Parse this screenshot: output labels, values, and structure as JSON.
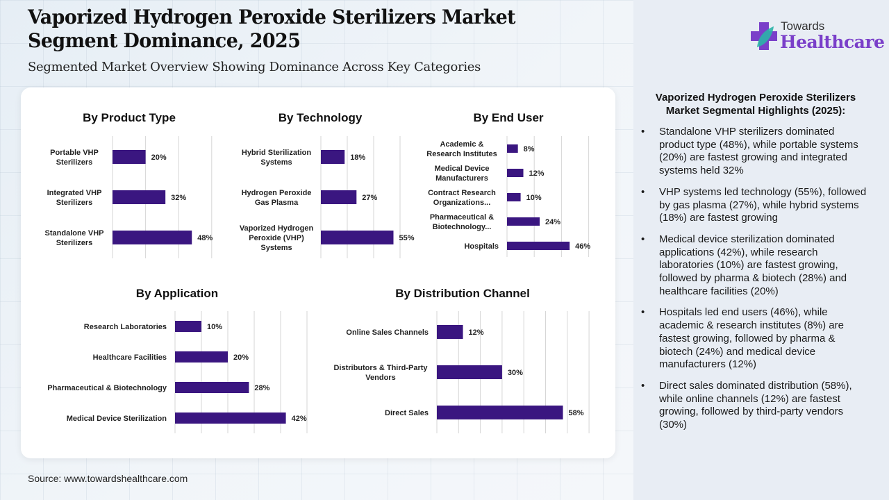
{
  "header": {
    "title_line1": "Vaporized Hydrogen Peroxide Sterilizers Market",
    "title_line2": "Segment Dominance, 2025",
    "subtitle": "Segmented Market Overview Showing Dominance Across Key Categories"
  },
  "logo": {
    "icon": "medical-cross-leaf-icon",
    "top": "Towards",
    "bottom": "Healthcare",
    "colors": {
      "cross": "#7a3fc9",
      "leaf": "#2bb3a8"
    }
  },
  "colors": {
    "bar": "#3a1680",
    "brand": "#7a3fc9",
    "gridline": "#d6d6d6"
  },
  "chart_data": [
    {
      "type": "bar",
      "orientation": "horizontal",
      "title": "By Product Type",
      "categories": [
        [
          "Portable VHP",
          "Sterilizers"
        ],
        [
          "Integrated VHP",
          "Sterilizers"
        ],
        [
          "Standalone VHP",
          "Sterilizers"
        ]
      ],
      "values": [
        20,
        32,
        48
      ],
      "value_labels": [
        "20%",
        "32%",
        "48%"
      ],
      "xlim": [
        0,
        60
      ],
      "grid_step": 20,
      "grid": true
    },
    {
      "type": "bar",
      "orientation": "horizontal",
      "title": "By Technology",
      "categories": [
        [
          "Hybrid Sterilization",
          "Systems"
        ],
        [
          "Hydrogen Peroxide",
          "Gas Plasma"
        ],
        [
          "Vaporized Hydrogen",
          "Peroxide (VHP)",
          "Systems"
        ]
      ],
      "values": [
        18,
        27,
        55
      ],
      "value_labels": [
        "18%",
        "27%",
        "55%"
      ],
      "xlim": [
        0,
        60
      ],
      "grid_step": 20,
      "grid": true
    },
    {
      "type": "bar",
      "orientation": "horizontal",
      "title": "By End User",
      "categories": [
        [
          "Academic &",
          "Research Institutes"
        ],
        [
          "Medical Device",
          "Manufacturers"
        ],
        [
          "Contract Research",
          "Organizations..."
        ],
        [
          "Pharmaceutical &",
          "Biotechnology..."
        ],
        [
          "Hospitals"
        ]
      ],
      "values": [
        8,
        12,
        10,
        24,
        46
      ],
      "value_labels": [
        "8%",
        "12%",
        "10%",
        "24%",
        "46%"
      ],
      "xlim": [
        0,
        60
      ],
      "grid_step": 20,
      "grid": true
    },
    {
      "type": "bar",
      "orientation": "horizontal",
      "title": "By Application",
      "categories": [
        [
          "Research Laboratories"
        ],
        [
          "Healthcare Facilities"
        ],
        [
          "Pharmaceutical & Biotechnology"
        ],
        [
          "Medical Device Sterilization"
        ]
      ],
      "values": [
        10,
        20,
        28,
        42
      ],
      "value_labels": [
        "10%",
        "20%",
        "28%",
        "42%"
      ],
      "xlim": [
        0,
        50
      ],
      "grid_step": 10,
      "grid": true
    },
    {
      "type": "bar",
      "orientation": "horizontal",
      "title": "By Distribution Channel",
      "categories": [
        [
          "Online Sales Channels"
        ],
        [
          "Distributors & Third-Party",
          "Vendors"
        ],
        [
          "Direct Sales"
        ]
      ],
      "values": [
        12,
        30,
        58
      ],
      "value_labels": [
        "12%",
        "30%",
        "58%"
      ],
      "xlim": [
        0,
        70
      ],
      "grid_step": 10,
      "grid": true
    }
  ],
  "highlights": {
    "title_line1": "Vaporized Hydrogen Peroxide Sterilizers",
    "title_line2": "Market Segmental Highlights (2025):",
    "bullet": "•",
    "items": [
      "Standalone VHP sterilizers dominated product type (48%), while portable systems (20%) are fastest growing and integrated systems held 32%",
      "VHP systems led technology (55%), followed by gas plasma (27%), while hybrid systems (18%) are fastest growing",
      "Medical device sterilization dominated applications (42%), while research laboratories (10%) are fastest growing, followed by pharma & biotech (28%) and healthcare facilities (20%)",
      "Hospitals led end users (46%), while academic & research institutes (8%) are fastest growing, followed by pharma & biotech (24%) and medical device manufacturers (12%)",
      "Direct sales dominated distribution (58%), while online channels (12%) are fastest growing, followed by third-party vendors (30%)"
    ]
  },
  "footer": {
    "source": "Source: www.towardshealthcare.com"
  }
}
